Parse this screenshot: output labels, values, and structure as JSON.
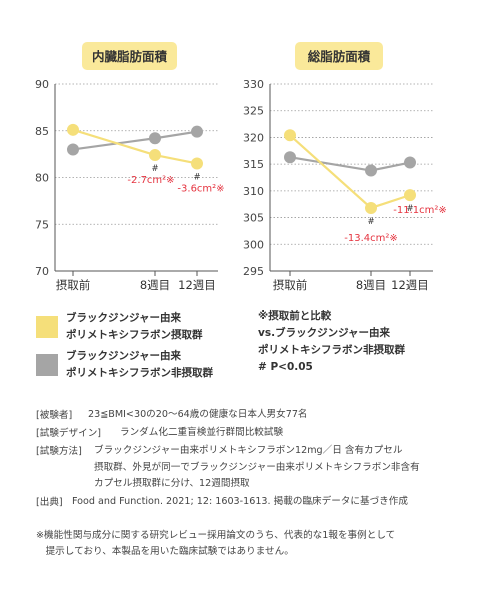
{
  "colors": {
    "treated": "#f5df7a",
    "untreated": "#a5a5a5",
    "title_bg": "#fae99a",
    "annotation": "#e5333f",
    "axis": "#555555",
    "grid": "#9a9a9a"
  },
  "chart_data": [
    {
      "type": "line",
      "title": "内臓脂肪面積",
      "categories": [
        "摂取前",
        "8週目",
        "12週目"
      ],
      "x": [
        0,
        8,
        12
      ],
      "ylim": [
        70,
        90
      ],
      "yticks": [
        70,
        75,
        80,
        85,
        90
      ],
      "series": [
        {
          "key": "treated",
          "values": [
            85.1,
            82.4,
            81.5
          ]
        },
        {
          "key": "untreated",
          "values": [
            83.0,
            84.2,
            84.9
          ]
        }
      ],
      "annotations": [
        {
          "x": 8,
          "mark": "#",
          "text": "-2.7cm²※"
        },
        {
          "x": 12,
          "mark": "#",
          "text": "-3.6cm²※"
        }
      ]
    },
    {
      "type": "line",
      "title": "総脂肪面積",
      "categories": [
        "摂取前",
        "8週目",
        "12週目"
      ],
      "x": [
        0,
        8,
        12
      ],
      "ylim": [
        295,
        330
      ],
      "yticks": [
        295,
        300,
        305,
        310,
        315,
        320,
        325,
        330
      ],
      "series": [
        {
          "key": "treated",
          "values": [
            320.4,
            306.8,
            309.2
          ]
        },
        {
          "key": "untreated",
          "values": [
            316.3,
            313.8,
            315.3
          ]
        }
      ],
      "annotations": [
        {
          "x": 8,
          "mark": "#",
          "text": "-13.4cm²※"
        },
        {
          "x": 12,
          "mark": "#",
          "text": "-11.1cm²※"
        }
      ]
    }
  ],
  "legend": {
    "treated": "ブラックジンジャー由来\nポリメトキシフラボン摂取群",
    "untreated": "ブラックジンジャー由来\nポリメトキシフラボン非摂取群"
  },
  "significance_note": "※摂取前と比較\nvs.ブラックジンジャー由来\nポリメトキシフラボン非摂取群\n# P<0.05",
  "study": {
    "subjects": {
      "label": "[被験者]",
      "value": "23≦BMI<30の20〜64歳の健康な日本人男女77名"
    },
    "design": {
      "label": "[試験デザイン]",
      "value": "ランダム化二重盲検並行群間比較試験"
    },
    "method": {
      "label": "[試験方法]",
      "value": "ブラックジンジャー由来ポリメトキシフラボン12mg／日 含有カプセル\n摂取群、外見が同一でブラックジンジャー由来ポリメトキシフラボン非含有\nカプセル摂取群に分け、12週間摂取"
    },
    "source": {
      "label": "[出典]",
      "value": "Food and Function. 2021; 12: 1603-1613. 掲載の臨床データに基づき作成"
    }
  },
  "notes": "※機能性関与成分に関する研究レビュー採用論文のうち、代表的な1報を事例として\n　提示しており、本製品を用いた臨床試験ではありません。"
}
